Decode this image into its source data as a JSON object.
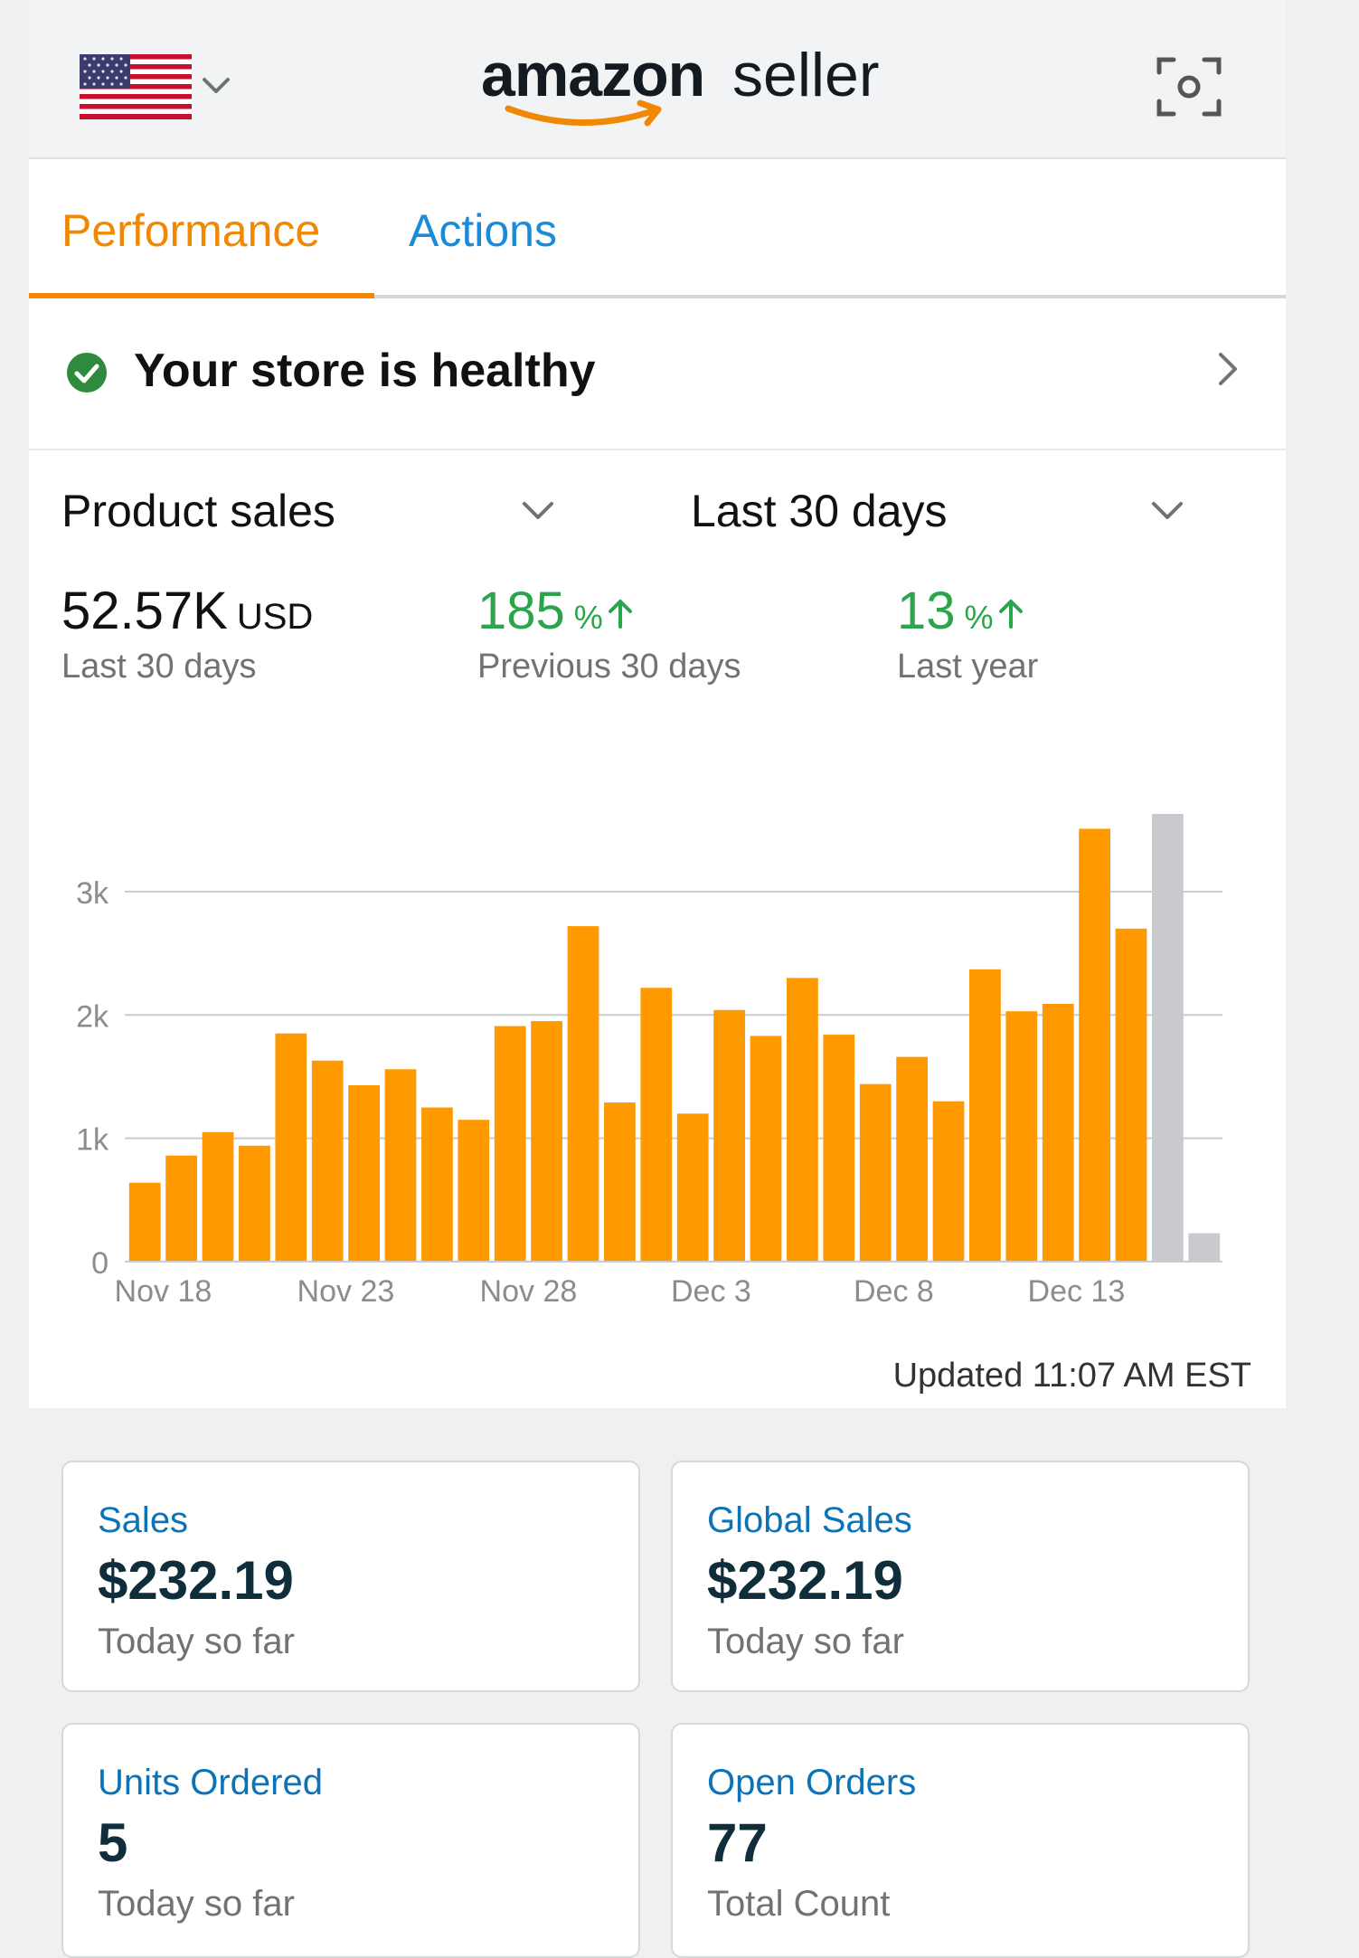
{
  "header": {
    "logo_brand": "amazon",
    "logo_product": "seller",
    "country_flag": "us-flag",
    "scan_icon": "scan-icon"
  },
  "tabs": [
    {
      "label": "Performance",
      "active": true
    },
    {
      "label": "Actions",
      "active": false
    }
  ],
  "health": {
    "text": "Your store is healthy",
    "status": "healthy"
  },
  "selectors": {
    "metric": "Product sales",
    "range": "Last 30 days"
  },
  "metrics": {
    "total": {
      "value": "52.57K",
      "unit": "USD",
      "label": "Last 30 days"
    },
    "vs_previous": {
      "value": "185",
      "unit": "%",
      "label": "Previous 30 days"
    },
    "vs_last_year": {
      "value": "13",
      "unit": "%",
      "label": "Last year"
    }
  },
  "colors": {
    "accent": "#f08804",
    "bar": "#ff9900",
    "bar_today": "#c9c9ce",
    "positive": "#2aa54a",
    "link": "#1a8bd8"
  },
  "chart_data": {
    "type": "bar",
    "x": [
      "Nov 18",
      "Nov 19",
      "Nov 20",
      "Nov 21",
      "Nov 22",
      "Nov 23",
      "Nov 24",
      "Nov 25",
      "Nov 26",
      "Nov 27",
      "Nov 28",
      "Nov 29",
      "Nov 30",
      "Dec 1",
      "Dec 2",
      "Dec 3",
      "Dec 4",
      "Dec 5",
      "Dec 6",
      "Dec 7",
      "Dec 8",
      "Dec 9",
      "Dec 10",
      "Dec 11",
      "Dec 12",
      "Dec 13",
      "Dec 14",
      "Dec 15",
      "Dec 16",
      "Dec 17"
    ],
    "series": [
      {
        "values": [
          640,
          860,
          1050,
          940,
          1850,
          1630,
          1430,
          1560,
          1250,
          1150,
          1910,
          1950,
          2720,
          1290,
          2220,
          1200,
          2040,
          1830,
          2300,
          1840,
          1440,
          1660,
          1300,
          2370,
          2030,
          2090,
          3510,
          2700,
          3630,
          230
        ]
      }
    ],
    "highlight_color_last_two": "#c9c9ce",
    "ylim": [
      0,
      3630
    ],
    "y_ticks": [
      "0",
      "1k",
      "2k",
      "3k"
    ],
    "x_ticks": [
      "Nov 18",
      "Nov 23",
      "Nov 28",
      "Dec 3",
      "Dec 8",
      "Dec 13"
    ],
    "grid": true,
    "xlabel": "",
    "ylabel": ""
  },
  "updated": "Updated 11:07 AM EST",
  "cards": [
    {
      "title": "Sales",
      "value": "$232.19",
      "sub": "Today so far"
    },
    {
      "title": "Global Sales",
      "value": "$232.19",
      "sub": "Today so far"
    },
    {
      "title": "Units Ordered",
      "value": "5",
      "sub": "Today so far"
    },
    {
      "title": "Open Orders",
      "value": "77",
      "sub": "Total Count"
    }
  ]
}
